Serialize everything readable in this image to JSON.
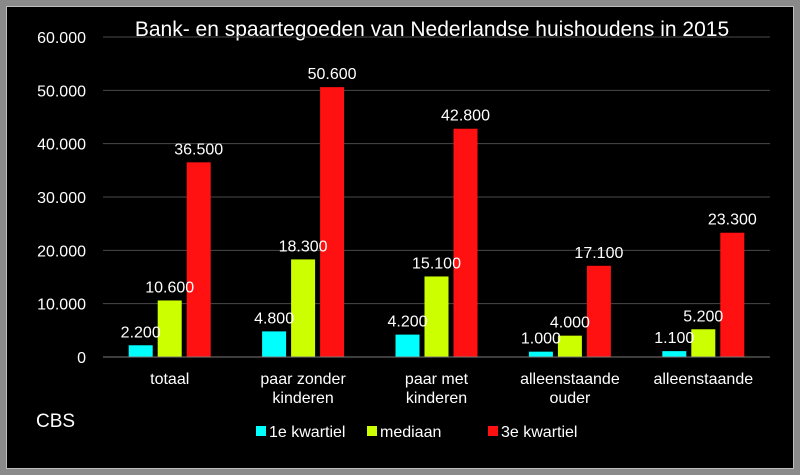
{
  "chart_data": {
    "type": "bar",
    "title": "Bank- en spaartegoeden van Nederlandse huishoudens in 2015",
    "categories": [
      [
        "totaal"
      ],
      [
        "paar zonder",
        "kinderen"
      ],
      [
        "paar met",
        "kinderen"
      ],
      [
        "alleenstaande",
        "ouder"
      ],
      [
        "alleenstaande"
      ]
    ],
    "series": [
      {
        "name": "1e kwartiel",
        "color": "#00ffff",
        "values": [
          2200,
          4800,
          4200,
          1000,
          1100
        ],
        "labels": [
          "2.200",
          "4.800",
          "4.200",
          "1.000",
          "1.100"
        ]
      },
      {
        "name": "mediaan",
        "color": "#ccff00",
        "values": [
          10600,
          18300,
          15100,
          4000,
          5200
        ],
        "labels": [
          "10.600",
          "18.300",
          "15.100",
          "4.000",
          "5.200"
        ]
      },
      {
        "name": "3e kwartiel",
        "color": "#ff1111",
        "values": [
          36500,
          50600,
          42800,
          17100,
          23300
        ],
        "labels": [
          "36.500",
          "50.600",
          "42.800",
          "17.100",
          "23.300"
        ]
      }
    ],
    "ylim": [
      0,
      60000
    ],
    "yticks": [
      0,
      10000,
      20000,
      30000,
      40000,
      50000,
      60000
    ],
    "ytick_labels": [
      "0",
      "10.000",
      "20.000",
      "30.000",
      "40.000",
      "50.000",
      "60.000"
    ],
    "grid": true,
    "legend_position": "bottom"
  },
  "source_label": "CBS"
}
